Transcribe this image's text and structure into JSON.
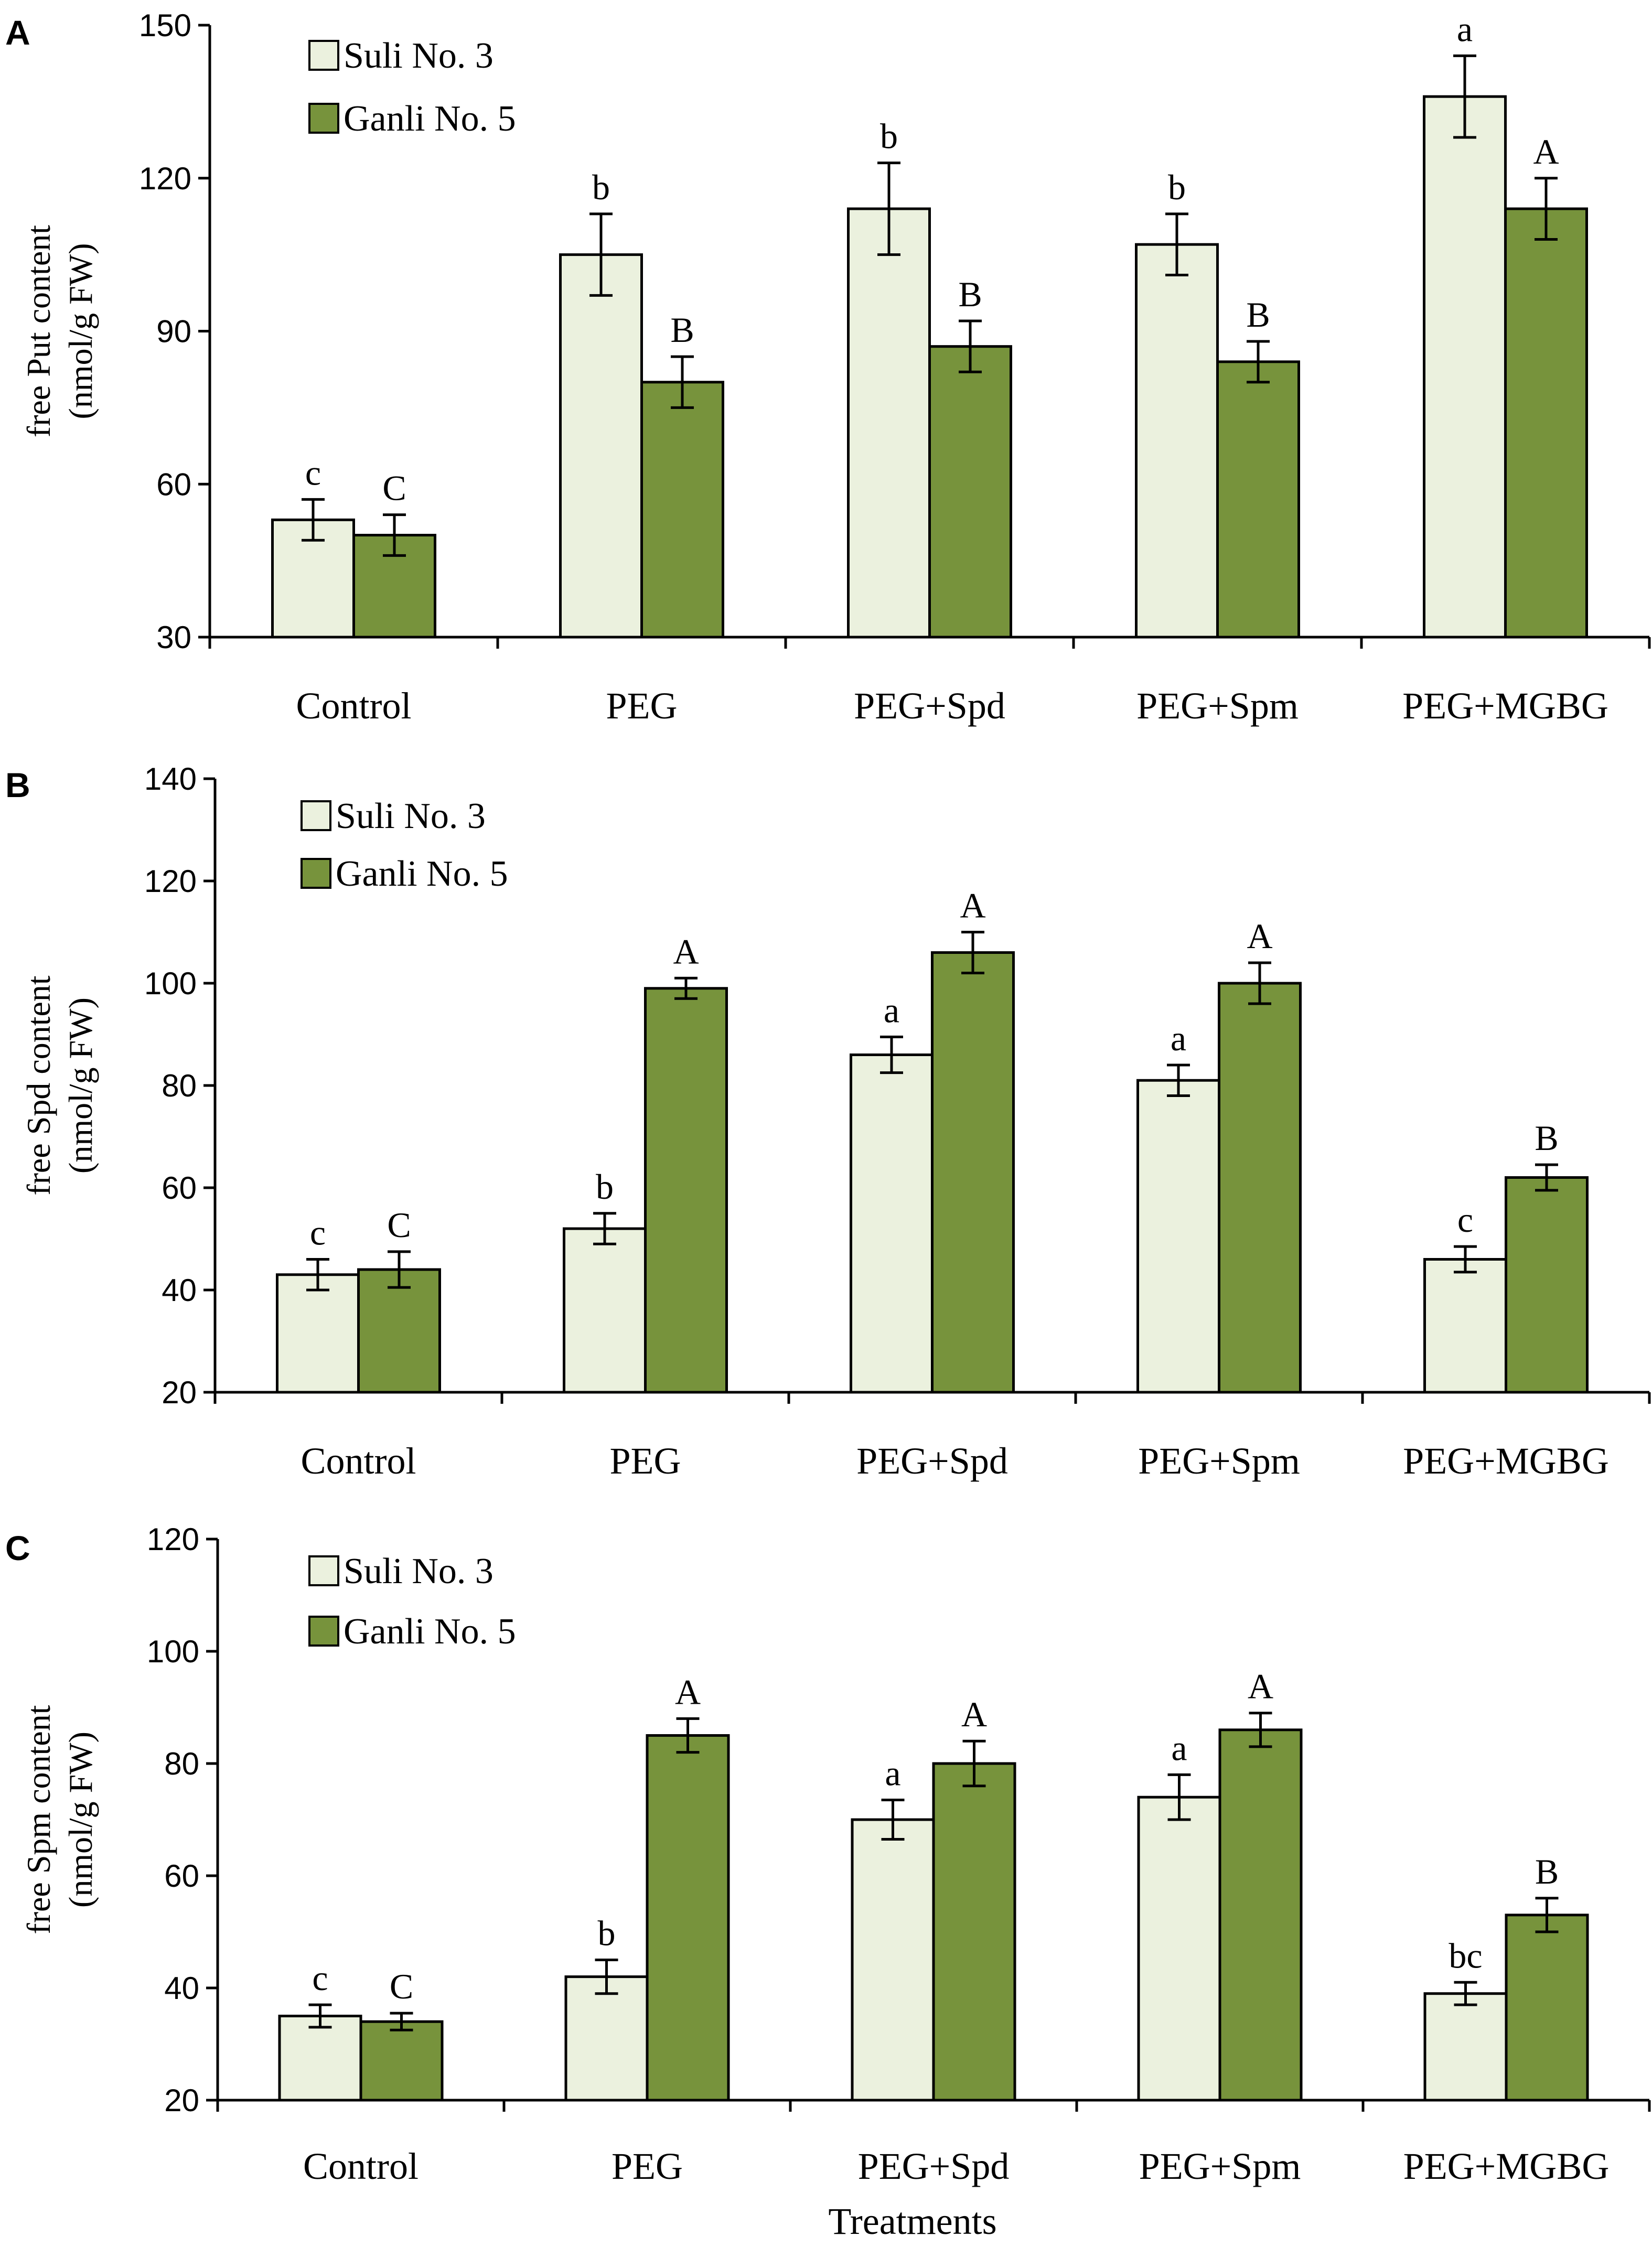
{
  "colors": {
    "suli": "#ebf1de",
    "ganli": "#77933c",
    "stroke": "#000000"
  },
  "chart_data": [
    {
      "panel": "A",
      "type": "bar",
      "categories": [
        "Control",
        "PEG",
        "PEG+Spd",
        "PEG+Spm",
        "PEG+MGBG"
      ],
      "ylabel_line1": "free Put content",
      "ylabel_line2": "(nmol/g FW)",
      "ylim": [
        30,
        150
      ],
      "yticks": [
        30,
        60,
        90,
        120,
        150
      ],
      "xlabel": "",
      "series": [
        {
          "name": "Suli No. 3",
          "values": [
            53,
            105,
            114,
            107,
            136
          ],
          "errors": [
            4,
            8,
            9,
            6,
            8
          ],
          "sig": [
            "c",
            "b",
            "b",
            "b",
            "a"
          ]
        },
        {
          "name": "Ganli No. 5",
          "values": [
            50,
            80,
            87,
            84,
            114
          ],
          "errors": [
            4,
            5,
            5,
            4,
            6
          ],
          "sig": [
            "C",
            "B",
            "B",
            "B",
            "A"
          ]
        }
      ]
    },
    {
      "panel": "B",
      "type": "bar",
      "categories": [
        "Control",
        "PEG",
        "PEG+Spd",
        "PEG+Spm",
        "PEG+MGBG"
      ],
      "ylabel_line1": "free Spd content",
      "ylabel_line2": "(nmol/g FW)",
      "ylim": [
        20,
        140
      ],
      "yticks": [
        20,
        40,
        60,
        80,
        100,
        120,
        140
      ],
      "xlabel": "",
      "series": [
        {
          "name": "Suli No. 3",
          "values": [
            43,
            52,
            86,
            81,
            46
          ],
          "errors": [
            3,
            3,
            3.5,
            3,
            2.5
          ],
          "sig": [
            "c",
            "b",
            "a",
            "a",
            "c"
          ]
        },
        {
          "name": "Ganli No. 5",
          "values": [
            44,
            99,
            106,
            100,
            62
          ],
          "errors": [
            3.5,
            2,
            4,
            4,
            2.5
          ],
          "sig": [
            "C",
            "A",
            "A",
            "A",
            "B"
          ]
        }
      ]
    },
    {
      "panel": "C",
      "type": "bar",
      "categories": [
        "Control",
        "PEG",
        "PEG+Spd",
        "PEG+Spm",
        "PEG+MGBG"
      ],
      "ylabel_line1": "free Spm content",
      "ylabel_line2": "(nmol/g FW)",
      "ylim": [
        20,
        120
      ],
      "yticks": [
        20,
        40,
        60,
        80,
        100,
        120
      ],
      "xlabel": "Treatments",
      "series": [
        {
          "name": "Suli No. 3",
          "values": [
            35,
            42,
            70,
            74,
            39
          ],
          "errors": [
            2,
            3,
            3.5,
            4,
            2
          ],
          "sig": [
            "c",
            "b",
            "a",
            "a",
            "bc"
          ]
        },
        {
          "name": "Ganli No. 5",
          "values": [
            34,
            85,
            80,
            86,
            53
          ],
          "errors": [
            1.5,
            3,
            4,
            3,
            3
          ],
          "sig": [
            "C",
            "A",
            "A",
            "A",
            "B"
          ]
        }
      ]
    }
  ]
}
